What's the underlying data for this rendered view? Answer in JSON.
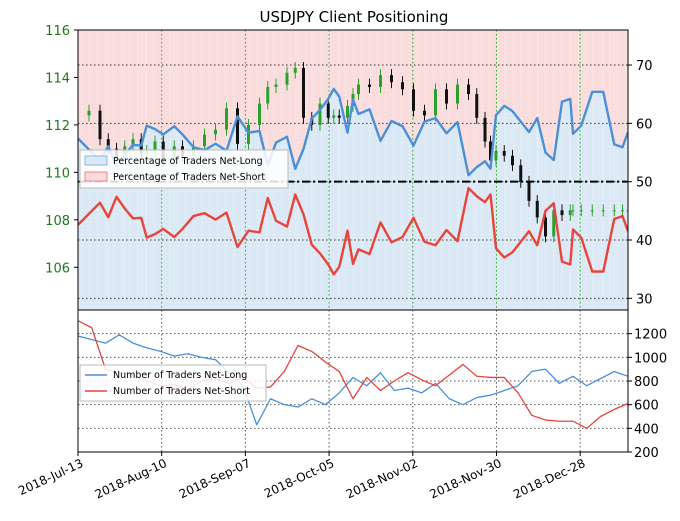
{
  "chart_data": [
    {
      "type": "line",
      "title": "USDJPY Client Positioning",
      "x_ticks": [
        "2018-Jul-13",
        "2018-Aug-10",
        "2018-Sep-07",
        "2018-Oct-05",
        "2018-Nov-02",
        "2018-Nov-30",
        "2018-Dec-28"
      ],
      "left_axis": {
        "ticks": [
          106,
          108,
          110,
          112,
          114,
          116
        ],
        "range": [
          104.2,
          116
        ],
        "tick_color": "#1a7a1a"
      },
      "right_axis": {
        "ticks": [
          30,
          40,
          50,
          60,
          70
        ],
        "range": [
          28,
          76
        ]
      },
      "reference_line": {
        "value": 50,
        "axis": "right",
        "style": "dash-dot",
        "color": "#000000"
      },
      "legend": {
        "placement": "middle-left",
        "entries": [
          "Percentage of Traders Net-Long",
          "Percentage of Traders Net-Short"
        ]
      },
      "colors": {
        "net_long": "#4a90d9",
        "net_short": "#e8443a",
        "long_fill": "#dbe9f6",
        "short_fill": "#fbdcdc",
        "candle_up": "#2ca02c",
        "candle_down": "#111111"
      },
      "series": [
        {
          "name": "Percentage of Traders Net-Long",
          "axis": "right",
          "x": [
            0,
            4,
            8,
            11,
            14,
            17,
            20,
            23,
            25,
            28,
            31,
            35,
            38,
            42,
            46,
            50,
            54,
            58,
            62,
            66,
            69,
            72,
            76,
            79,
            82,
            85,
            88,
            91,
            93,
            95,
            98,
            100,
            102,
            106,
            110,
            114,
            118,
            122,
            126,
            130,
            134,
            138,
            142,
            145,
            148,
            150,
            152,
            155,
            158,
            161,
            164,
            167,
            170,
            173,
            176,
            179,
            180,
            183,
            187,
            191,
            195,
            198,
            200
          ],
          "values": [
            57.4,
            55.5,
            53.6,
            56.1,
            52.6,
            54.6,
            56.3,
            56.2,
            59.6,
            59.0,
            58.1,
            59.5,
            58.1,
            55.9,
            55.4,
            56.5,
            55.3,
            61.2,
            58.4,
            58.7,
            52.8,
            56.7,
            57.7,
            52.2,
            55.6,
            60.8,
            62.3,
            64.2,
            65.9,
            64.6,
            58.4,
            64.1,
            61.6,
            62.4,
            57.0,
            60.4,
            59.5,
            56.2,
            60.3,
            60.9,
            58.3,
            60.2,
            51.1,
            52.5,
            53.5,
            52.2,
            61.4,
            63.0,
            62.1,
            60.3,
            58.5,
            60.9,
            55.0,
            53.7,
            63.7,
            64.2,
            58.2,
            59.6,
            65.4,
            65.4,
            56.4,
            55.9,
            58.5
          ]
        },
        {
          "name": "Percentage of Traders Net-Short",
          "axis": "right",
          "x": [
            0,
            4,
            8,
            11,
            14,
            17,
            20,
            23,
            25,
            28,
            31,
            35,
            38,
            42,
            46,
            50,
            54,
            58,
            62,
            66,
            69,
            72,
            76,
            79,
            82,
            85,
            88,
            91,
            93,
            95,
            98,
            100,
            102,
            106,
            110,
            114,
            118,
            122,
            126,
            130,
            134,
            138,
            142,
            145,
            148,
            150,
            152,
            155,
            158,
            161,
            164,
            167,
            170,
            173,
            176,
            179,
            180,
            183,
            187,
            191,
            195,
            198,
            200
          ],
          "values": [
            42.6,
            44.5,
            46.4,
            43.9,
            47.4,
            45.4,
            43.7,
            43.8,
            40.4,
            41.0,
            41.9,
            40.5,
            41.9,
            44.1,
            44.6,
            43.5,
            44.7,
            38.8,
            41.6,
            41.3,
            47.2,
            43.3,
            42.3,
            47.8,
            44.4,
            39.2,
            37.7,
            35.8,
            34.1,
            35.4,
            41.6,
            35.9,
            38.4,
            37.6,
            43.0,
            39.6,
            40.5,
            43.8,
            39.7,
            39.1,
            41.7,
            39.8,
            48.9,
            47.5,
            46.5,
            47.8,
            38.6,
            37.0,
            37.9,
            39.7,
            41.5,
            39.1,
            45.0,
            46.3,
            36.3,
            35.8,
            41.8,
            40.4,
            34.6,
            34.6,
            43.6,
            44.1,
            41.5
          ]
        },
        {
          "name": "USDJPY",
          "type": "candlestick",
          "axis": "left",
          "x": [
            0,
            4,
            8,
            11,
            14,
            17,
            20,
            23,
            25,
            28,
            31,
            35,
            38,
            42,
            46,
            50,
            54,
            58,
            62,
            66,
            69,
            72,
            76,
            79,
            82,
            85,
            88,
            91,
            93,
            95,
            98,
            100,
            102,
            106,
            110,
            114,
            118,
            122,
            126,
            130,
            134,
            138,
            142,
            145,
            148,
            150,
            152,
            155,
            158,
            161,
            164,
            167,
            170,
            173,
            176,
            179,
            180,
            183,
            187,
            191,
            195,
            198,
            200
          ],
          "values": [
            112.4,
            112.6,
            111.4,
            111.0,
            110.6,
            111.1,
            111.4,
            110.8,
            110.9,
            111.3,
            110.5,
            111.1,
            110.7,
            111.1,
            111.6,
            111.8,
            112.7,
            111.2,
            112.0,
            112.9,
            113.6,
            113.7,
            114.2,
            114.4,
            112.3,
            112.0,
            112.9,
            112.3,
            112.4,
            112.3,
            112.8,
            113.3,
            113.7,
            113.6,
            114.1,
            113.8,
            113.5,
            112.6,
            112.4,
            113.5,
            112.9,
            113.7,
            113.3,
            112.3,
            111.3,
            110.5,
            110.9,
            110.7,
            110.3,
            109.6,
            108.8,
            108.1,
            107.3,
            108.4,
            108.2,
            108.4,
            108.4,
            108.4,
            108.4,
            108.4,
            108.4,
            108.4,
            108.4
          ]
        }
      ]
    },
    {
      "type": "line",
      "x_ticks": [
        "2018-Jul-13",
        "2018-Aug-10",
        "2018-Sep-07",
        "2018-Oct-05",
        "2018-Nov-02",
        "2018-Nov-30",
        "2018-Dec-28"
      ],
      "right_axis": {
        "ticks": [
          200,
          400,
          600,
          800,
          1000,
          1200
        ],
        "range": [
          200,
          1400
        ]
      },
      "legend": {
        "placement": "middle-left",
        "entries": [
          "Number of Traders Net-Long",
          "Number of Traders Net-Short"
        ]
      },
      "series": [
        {
          "name": "Number of Traders Net-Long",
          "x": [
            0,
            5,
            10,
            15,
            20,
            25,
            30,
            35,
            40,
            45,
            50,
            55,
            60,
            65,
            70,
            75,
            80,
            85,
            90,
            95,
            100,
            105,
            110,
            115,
            120,
            125,
            130,
            135,
            140,
            145,
            150,
            155,
            160,
            165,
            170,
            175,
            180,
            185,
            190,
            195,
            200
          ],
          "values": [
            1180,
            1150,
            1120,
            1190,
            1120,
            1080,
            1050,
            1010,
            1030,
            1000,
            980,
            870,
            760,
            430,
            650,
            600,
            580,
            650,
            600,
            700,
            830,
            760,
            870,
            720,
            740,
            700,
            780,
            650,
            600,
            660,
            680,
            720,
            760,
            880,
            900,
            780,
            840,
            760,
            820,
            880,
            840
          ]
        },
        {
          "name": "Number of Traders Net-Short",
          "x": [
            0,
            5,
            10,
            15,
            20,
            25,
            30,
            35,
            40,
            45,
            50,
            55,
            60,
            65,
            70,
            75,
            80,
            85,
            90,
            95,
            100,
            105,
            110,
            115,
            120,
            125,
            130,
            135,
            140,
            145,
            150,
            155,
            160,
            165,
            170,
            175,
            180,
            185,
            190,
            195,
            200
          ],
          "values": [
            1310,
            1250,
            900,
            870,
            850,
            800,
            760,
            770,
            730,
            800,
            820,
            780,
            830,
            740,
            750,
            880,
            1100,
            1050,
            960,
            880,
            650,
            830,
            720,
            800,
            870,
            810,
            760,
            850,
            940,
            840,
            830,
            830,
            700,
            510,
            470,
            460,
            460,
            400,
            500,
            560,
            610
          ]
        }
      ]
    }
  ]
}
